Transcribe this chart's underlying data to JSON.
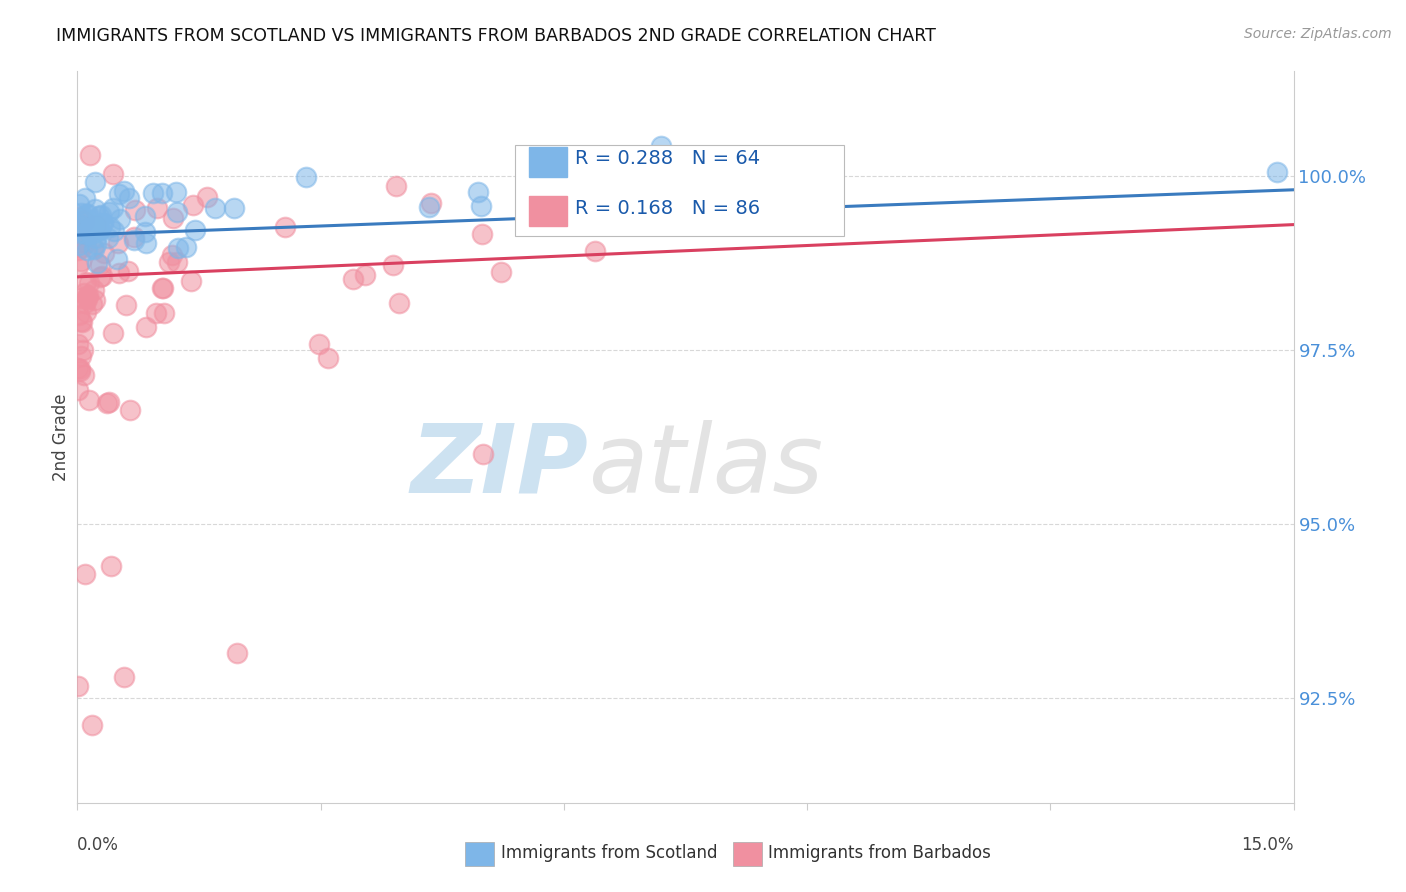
{
  "title": "IMMIGRANTS FROM SCOTLAND VS IMMIGRANTS FROM BARBADOS 2ND GRADE CORRELATION CHART",
  "source": "Source: ZipAtlas.com",
  "ylabel": "2nd Grade",
  "xlim": [
    0.0,
    15.0
  ],
  "ylim": [
    91.0,
    101.5
  ],
  "yticks": [
    92.5,
    95.0,
    97.5,
    100.0
  ],
  "ytick_labels": [
    "92.5%",
    "95.0%",
    "97.5%",
    "100.0%"
  ],
  "scotland_color": "#7EB6E8",
  "barbados_color": "#F090A0",
  "scotland_line_color": "#3a7bbf",
  "barbados_line_color": "#d94060",
  "legend_scotland_label": "Immigrants from Scotland",
  "legend_barbados_label": "Immigrants from Barbados",
  "R_scotland": 0.288,
  "N_scotland": 64,
  "R_barbados": 0.168,
  "N_barbados": 86,
  "background_color": "#ffffff",
  "grid_color": "#d8d8d8",
  "watermark_zip_color": "#c8dff0",
  "watermark_atlas_color": "#b0b0b0"
}
